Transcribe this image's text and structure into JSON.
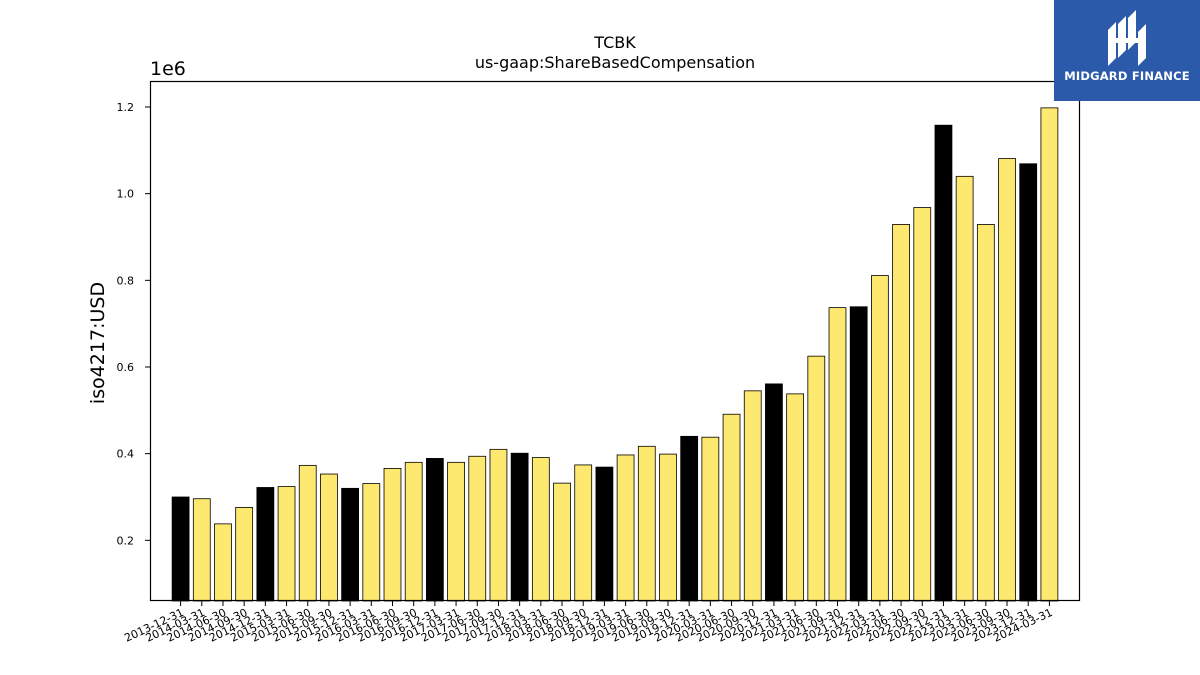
{
  "chart_data": {
    "type": "bar",
    "title": "TCBK",
    "subtitle": "us-gaap:ShareBasedCompensation",
    "ylabel": "iso4217:USD",
    "y_offset_label": "1e6",
    "ylim": [
      0.06,
      1.26
    ],
    "yticks": [
      0.2,
      0.4,
      0.6,
      0.8,
      1.0,
      1.2
    ],
    "ytick_labels": [
      "0.2",
      "0.4",
      "0.6",
      "0.8",
      "1.0",
      "1.2"
    ],
    "grid": false,
    "legend": "none",
    "colors": {
      "annual": "#000000",
      "quarter": "#fde870",
      "edge": "#000000"
    },
    "categories": [
      "2013-12-31",
      "2014-03-31",
      "2014-06-30",
      "2014-09-30",
      "2014-12-31",
      "2015-03-31",
      "2015-06-30",
      "2015-09-30",
      "2015-12-31",
      "2016-03-31",
      "2016-06-30",
      "2016-09-30",
      "2016-12-31",
      "2017-03-31",
      "2017-06-30",
      "2017-09-30",
      "2017-12-31",
      "2018-03-31",
      "2018-06-30",
      "2018-09-30",
      "2018-12-31",
      "2019-03-31",
      "2019-06-30",
      "2019-09-30",
      "2019-12-31",
      "2020-03-31",
      "2020-06-30",
      "2020-09-30",
      "2020-12-31",
      "2021-03-31",
      "2021-06-30",
      "2021-09-30",
      "2021-12-31",
      "2022-03-31",
      "2022-06-30",
      "2022-09-30",
      "2022-12-31",
      "2023-03-31",
      "2023-06-30",
      "2023-09-30",
      "2023-12-31",
      "2024-03-31"
    ],
    "values": [
      0.3,
      0.296,
      0.238,
      0.276,
      0.322,
      0.324,
      0.373,
      0.353,
      0.32,
      0.331,
      0.366,
      0.38,
      0.389,
      0.38,
      0.394,
      0.41,
      0.401,
      0.391,
      0.332,
      0.374,
      0.369,
      0.397,
      0.417,
      0.399,
      0.44,
      0.438,
      0.491,
      0.545,
      0.561,
      0.538,
      0.625,
      0.737,
      0.739,
      0.811,
      0.929,
      0.968,
      1.158,
      1.04,
      0.929,
      1.081,
      1.069,
      1.198
    ],
    "bar_type": [
      "annual",
      "quarter",
      "quarter",
      "quarter",
      "annual",
      "quarter",
      "quarter",
      "quarter",
      "annual",
      "quarter",
      "quarter",
      "quarter",
      "annual",
      "quarter",
      "quarter",
      "quarter",
      "annual",
      "quarter",
      "quarter",
      "quarter",
      "annual",
      "quarter",
      "quarter",
      "quarter",
      "annual",
      "quarter",
      "quarter",
      "quarter",
      "annual",
      "quarter",
      "quarter",
      "quarter",
      "annual",
      "quarter",
      "quarter",
      "quarter",
      "annual",
      "quarter",
      "quarter",
      "quarter",
      "annual",
      "quarter"
    ]
  },
  "logo": {
    "text": "MIDGARD FINANCE",
    "background": "#2c5aab",
    "icon": "midgard-logo-icon"
  }
}
